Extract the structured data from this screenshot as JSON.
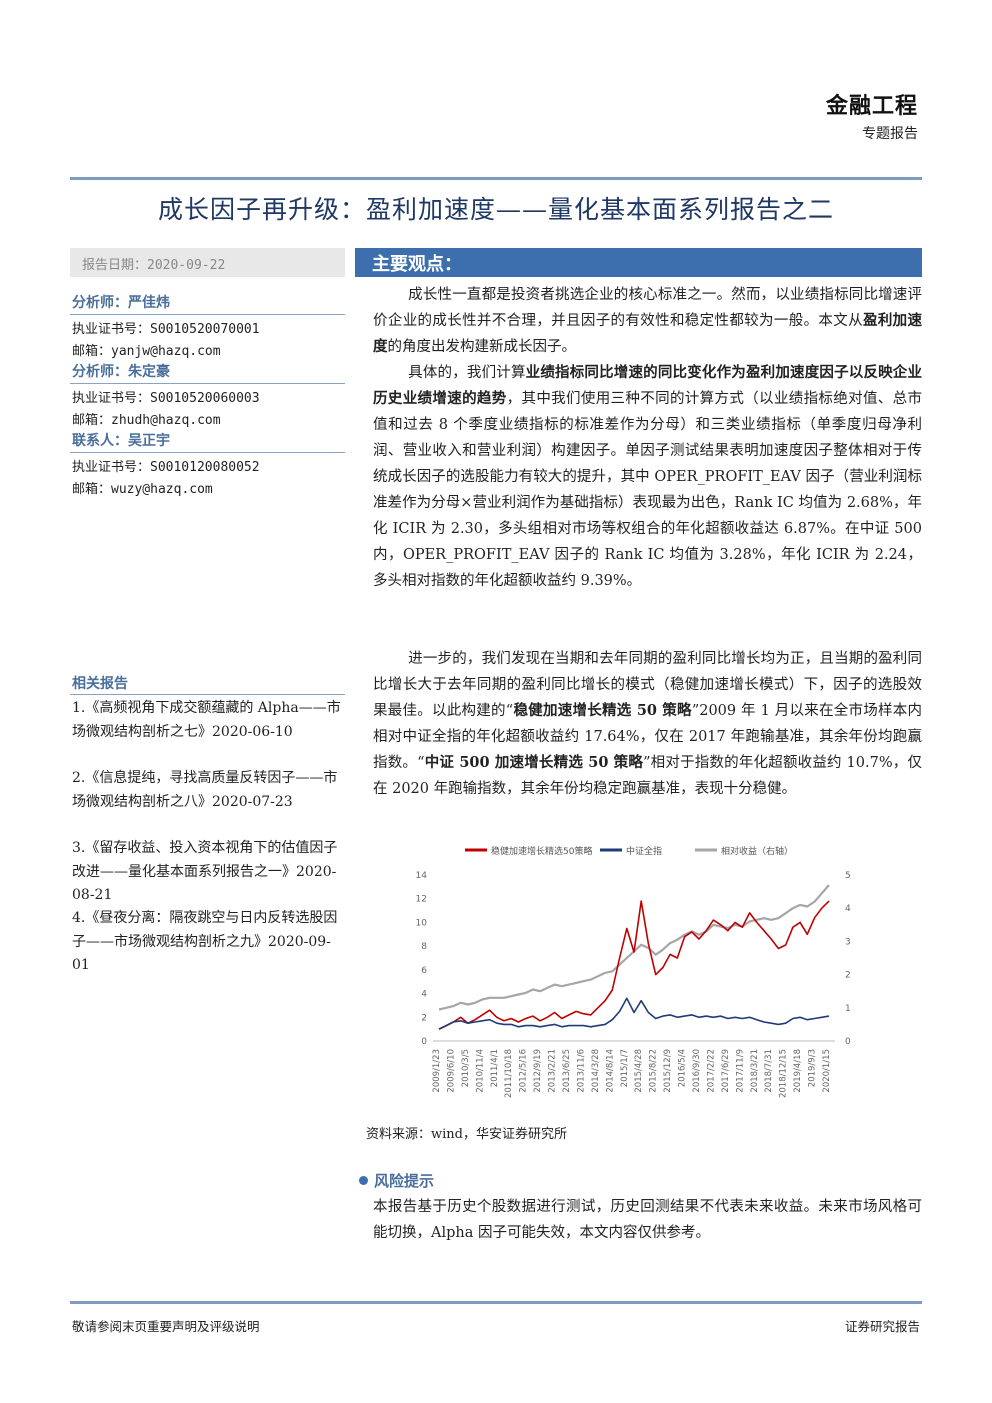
{
  "header": {
    "category": "金融工程",
    "report_type": "专题报告",
    "title": "成长因子再升级：盈利加速度——量化基本面系列报告之二"
  },
  "sidebar": {
    "date": "报告日期：2020-09-22",
    "analysts": [
      {
        "name": "分析师：严佳炜",
        "cert": "执业证书号：S0010520070001",
        "email": "邮箱：yanjw@hazq.com"
      },
      {
        "name": "分析师：朱定豪",
        "cert": "执业证书号：S0010520060003",
        "email": "邮箱：zhudh@hazq.com"
      },
      {
        "name": "联系人：吴正宇",
        "cert": "执业证书号：S0010120080052",
        "email": "邮箱：wuzy@hazq.com"
      }
    ],
    "related_title": "相关报告",
    "related": [
      "1.《高频视角下成交额蕴藏的 Alpha——市场微观结构剖析之七》2020-06-10",
      "2.《信息提纯，寻找高质量反转因子——市场微观结构剖析之八》2020-07-23",
      "3.《留存收益、投入资本视角下的估值因子改进——量化基本面系列报告之一》2020-08-21",
      "4.《昼夜分离：隔夜跳空与日内反转选股因子——市场微观结构剖析之九》2020-09-01"
    ]
  },
  "main": {
    "key_points_title": "主要观点：",
    "p1": "成长性一直都是投资者挑选企业的核心标准之一。然而，以业绩指标同比增速评价企业的成长性并不合理，并且因子的有效性和稳定性都较为一般。本文从",
    "p1_bold": "盈利加速度",
    "p1_end": "的角度出发构建新成长因子。",
    "p2a": "具体的，我们计算",
    "p2_bold": "业绩指标同比增速的同比变化作为盈利加速度因子以反映企业历史业绩增速的趋势",
    "p2b": "，其中我们使用三种不同的计算方式（以业绩指标绝对值、总市值和过去 8 个季度业绩指标的标准差作为分母）和三类业绩指标（单季度归母净利润、营业收入和营业利润）构建因子。单因子测试结果表明加速度因子整体相对于传统成长因子的选股能力有较大的提升，其中 OPER_PROFIT_EAV 因子（营业利润标准差作为分母×营业利润作为基础指标）表现最为出色，Rank IC 均值为 2.68%，年化 ICIR 为 2.30，多头组相对市场等权组合的年化超额收益达 6.87%。在中证 500 内，OPER_PROFIT_EAV 因子的 Rank IC 均值为 3.28%，年化 ICIR 为 2.24，多头相对指数的年化超额收益约 9.39%。",
    "p3a": "进一步的，我们发现在当期和去年同期的盈利同比增长均为正，且当期的盈利同比增长大于去年同期的盈利同比增长的模式（稳健加速增长模式）下，因子的选股效果最佳。以此构建的“",
    "p3_bold1": "稳健加速增长精选 50 策略",
    "p3b": "”2009 年 1 月以来在全市场样本内相对中证全指的年化超额收益约 17.64%，仅在 2017 年跑输基准，其余年份均跑赢指数。“",
    "p3_bold2": "中证 500 加速增长精选 50 策略",
    "p3c": "”相对于指数的年化超额收益约 10.7%，仅在 2020 年跑输指数，其余年份均稳定跑赢基准，表现十分稳健。",
    "source": "资料来源：wind，华安证券研究所",
    "risk_title": "风险提示",
    "risk_text": "本报告基于历史个股数据进行测试，历史回测结果不代表未来收益。未来市场风格可能切换，Alpha 因子可能失效，本文内容仅供参考。"
  },
  "footer": {
    "left": "敬请参阅末页重要声明及评级说明",
    "right": "证券研究报告"
  },
  "chart_data": {
    "type": "line",
    "legend_position": "top",
    "grid": false,
    "x_ticks": [
      "2009/1/23",
      "2009/6/10",
      "2010/3/5",
      "2010/11/4",
      "2011/4/1",
      "2011/10/18",
      "2012/5/16",
      "2012/9/19",
      "2013/2/21",
      "2013/6/25",
      "2013/11/6",
      "2014/3/28",
      "2014/8/14",
      "2015/1/7",
      "2015/4/28",
      "2015/8/22",
      "2015/12/9",
      "2016/5/4",
      "2016/9/30",
      "2017/2/22",
      "2017/6/29",
      "2017/11/9",
      "2018/3/21",
      "2018/7/31",
      "2018/12/15",
      "2019/4/18",
      "2019/9/3",
      "2020/1/15"
    ],
    "y_left": {
      "min": 0,
      "max": 14,
      "ticks": [
        0,
        2,
        4,
        6,
        8,
        10,
        12,
        14
      ]
    },
    "y_right": {
      "min": 0,
      "max": 5,
      "ticks": [
        0,
        1,
        2,
        3,
        4,
        5
      ]
    },
    "series": [
      {
        "name": "稳健加速增长精选50策略",
        "axis": "left",
        "color": "#c00000",
        "values": [
          1.0,
          1.3,
          1.6,
          2.0,
          1.5,
          1.8,
          2.2,
          2.6,
          2.0,
          1.7,
          1.9,
          1.6,
          1.9,
          2.1,
          1.7,
          2.0,
          2.4,
          1.9,
          2.2,
          2.5,
          2.3,
          2.2,
          2.8,
          3.4,
          4.3,
          7.0,
          9.5,
          7.5,
          11.8,
          8.2,
          5.6,
          6.2,
          7.3,
          7.0,
          8.8,
          9.2,
          8.6,
          9.3,
          10.2,
          9.8,
          9.3,
          10.0,
          9.6,
          10.8,
          10.0,
          9.3,
          8.6,
          7.8,
          8.1,
          9.6,
          10.0,
          9.0,
          10.4,
          11.2,
          11.8
        ]
      },
      {
        "name": "中证全指",
        "axis": "left",
        "color": "#1f3b7a",
        "values": [
          1.0,
          1.3,
          1.6,
          1.7,
          1.5,
          1.6,
          1.7,
          1.8,
          1.5,
          1.4,
          1.4,
          1.2,
          1.3,
          1.3,
          1.2,
          1.3,
          1.4,
          1.2,
          1.3,
          1.3,
          1.3,
          1.2,
          1.3,
          1.4,
          1.8,
          2.5,
          3.6,
          2.4,
          3.4,
          2.4,
          1.9,
          2.1,
          2.2,
          2.0,
          2.1,
          2.2,
          2.0,
          2.1,
          2.0,
          2.1,
          1.9,
          2.0,
          1.9,
          2.0,
          1.8,
          1.6,
          1.5,
          1.4,
          1.5,
          1.9,
          2.0,
          1.8,
          1.9,
          2.0,
          2.1
        ]
      },
      {
        "name": "相对收益（右轴）",
        "axis": "right",
        "color": "#a6a6a6",
        "values": [
          0.95,
          1.0,
          1.05,
          1.15,
          1.1,
          1.15,
          1.25,
          1.3,
          1.3,
          1.3,
          1.35,
          1.4,
          1.45,
          1.55,
          1.5,
          1.6,
          1.7,
          1.65,
          1.7,
          1.75,
          1.8,
          1.85,
          1.95,
          2.05,
          2.1,
          2.3,
          2.5,
          2.7,
          2.9,
          2.8,
          2.6,
          2.75,
          2.95,
          3.05,
          3.2,
          3.3,
          3.2,
          3.3,
          3.5,
          3.45,
          3.4,
          3.5,
          3.45,
          3.6,
          3.65,
          3.7,
          3.65,
          3.7,
          3.85,
          4.0,
          4.1,
          4.05,
          4.2,
          4.45,
          4.7
        ]
      }
    ]
  }
}
